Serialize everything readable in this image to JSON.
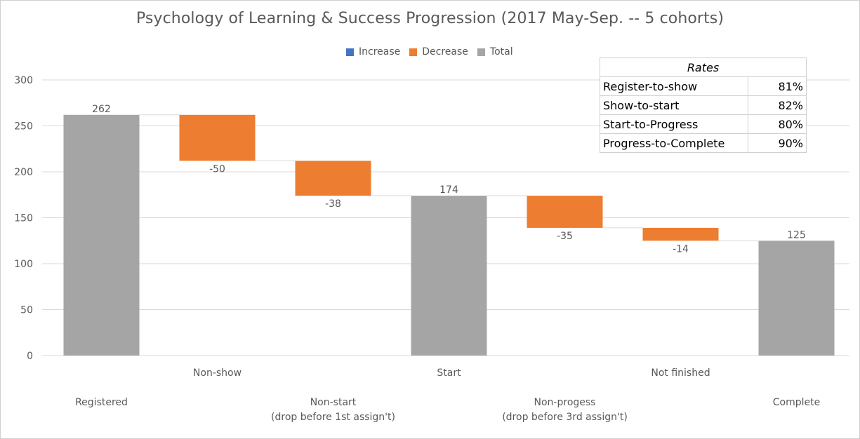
{
  "chart_data": {
    "type": "waterfall",
    "title": "Psychology of Learning & Success Progression (2017 May-Sep. -- 5 cohorts)",
    "legend": {
      "position": "top",
      "items": [
        {
          "label": "Increase",
          "color": "#4472C4"
        },
        {
          "label": "Decrease",
          "color": "#ED7D31"
        },
        {
          "label": "Total",
          "color": "#A5A5A5"
        }
      ]
    },
    "ylim": [
      0,
      300
    ],
    "yticks": [
      0,
      50,
      100,
      150,
      200,
      250,
      300
    ],
    "categories": [
      "Registered",
      "Non-show",
      "Non-start\n(drop before 1st assign't)",
      "Start",
      "Non-progess\n(drop before 3rd assign't)",
      "Not finished",
      "Complete"
    ],
    "steps": [
      {
        "category": "Registered",
        "kind": "total",
        "value": 262,
        "label": "262"
      },
      {
        "category": "Non-show",
        "kind": "decrease",
        "value": -50,
        "label": "-50"
      },
      {
        "category": "Non-start (drop before 1st assign't)",
        "kind": "decrease",
        "value": -38,
        "label": "-38"
      },
      {
        "category": "Start",
        "kind": "total",
        "value": 174,
        "label": "174"
      },
      {
        "category": "Non-progess (drop before 3rd assign't)",
        "kind": "decrease",
        "value": -35,
        "label": "-35"
      },
      {
        "category": "Not finished",
        "kind": "decrease",
        "value": -14,
        "label": "-14"
      },
      {
        "category": "Complete",
        "kind": "total",
        "value": 125,
        "label": "125"
      }
    ],
    "colors": {
      "increase": "#4472C4",
      "decrease": "#ED7D31",
      "total": "#A5A5A5",
      "grid": "#D9D9D9",
      "text": "#595959"
    },
    "grid": true
  },
  "rates_table": {
    "header": "Rates",
    "rows": [
      {
        "name": "Register-to-show",
        "value": "81%"
      },
      {
        "name": "Show-to-start",
        "value": "82%"
      },
      {
        "name": "Start-to-Progress",
        "value": "80%"
      },
      {
        "name": "Progress-to-Complete",
        "value": "90%"
      }
    ]
  }
}
